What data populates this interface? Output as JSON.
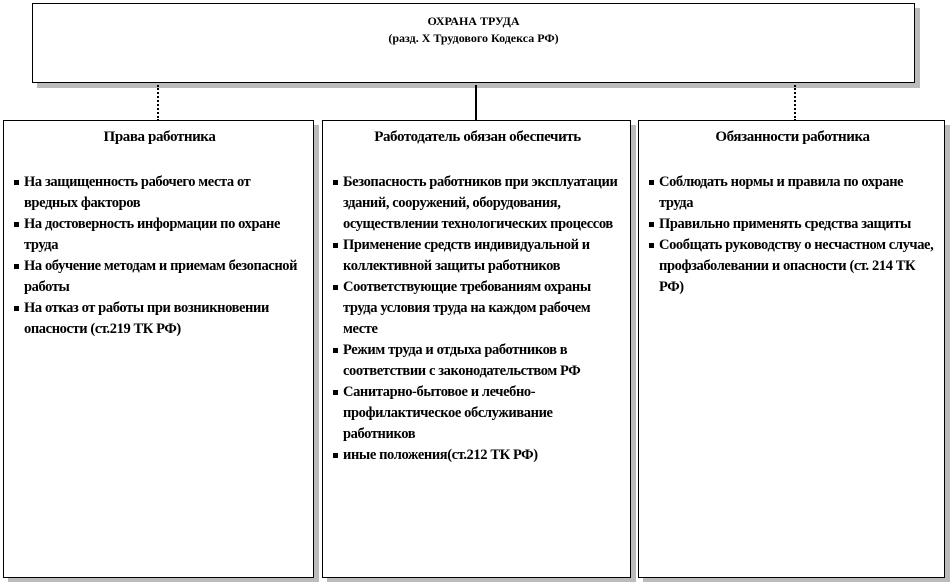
{
  "top": {
    "title": "ОХРАНА ТРУДА",
    "subtitle": "(разд. X Трудового Кодекса РФ)"
  },
  "columns": [
    {
      "heading": "Права работника",
      "items": [
        "На защищенность рабочего места от вредных факторов",
        "На достоверность информации по охране труда",
        "На обучение методам и приемам безопасной работы",
        "На отказ от работы при возникновении опасности (ст.219 ТК РФ)"
      ]
    },
    {
      "heading": "Работодатель обязан обеспечить",
      "items": [
        "Безопасность работников при эксплуатации зданий, сооружений, оборудования, осуществлении технологических процессов",
        "Применение средств индивидуальной и коллективной защиты работников",
        "Соответствующие требованиям охраны труда условия труда на каждом рабочем месте",
        "Режим труда и отдыха работников в соответствии с законодательством РФ",
        "Санитарно-бытовое и лечебно-профилактическое обслуживание работников",
        "иные положения(ст.212 ТК РФ)"
      ]
    },
    {
      "heading": "Обязанности работника",
      "items": [
        "Соблюдать нормы и правила по охране труда",
        "Правильно применять средства защиты",
        "Сообщать руководству о несчастном случае, профзаболевании и опасности (ст. 214  ТК РФ)"
      ]
    }
  ]
}
